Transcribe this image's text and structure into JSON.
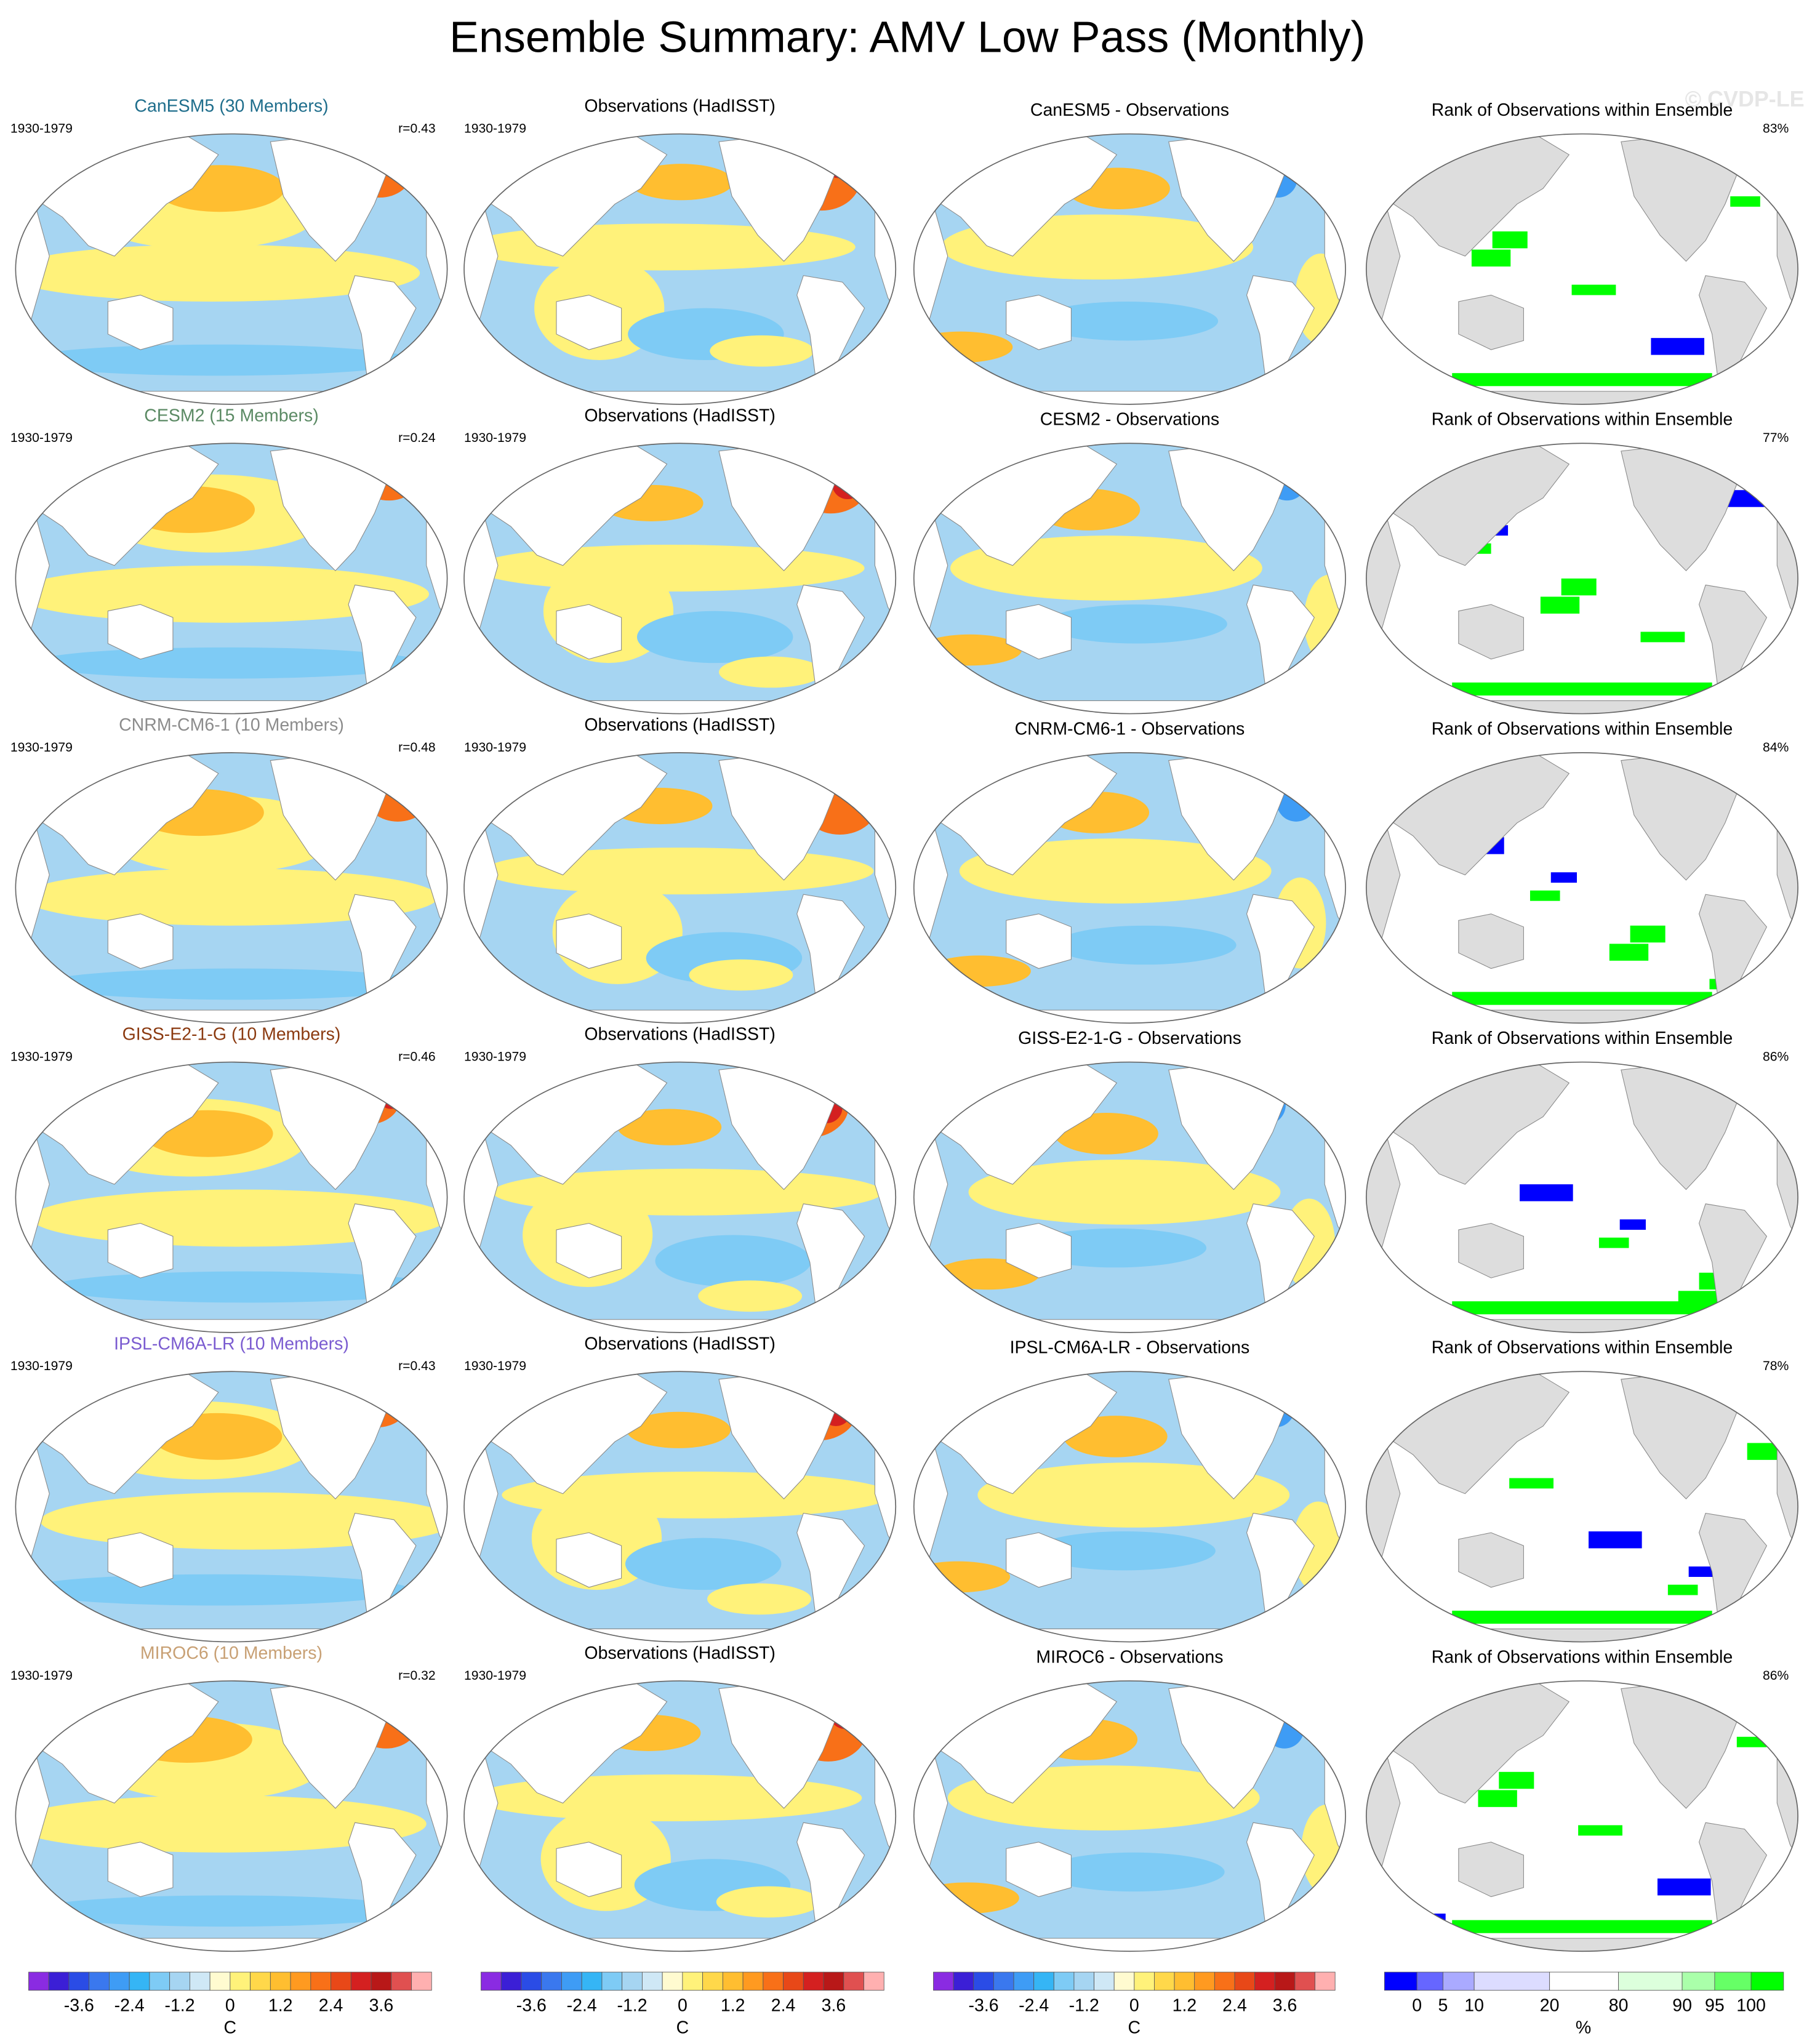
{
  "title": "Ensemble Summary: AMV Low Pass (Monthly)",
  "watermark": "© CVDP-LE",
  "rows": [
    {
      "model": "CanESM5 (30 Members)",
      "model_color": "#1f6e8c",
      "period": "1930-1979",
      "r": "r=0.43",
      "obs_title": "Observations (HadISST)",
      "obs_period": "1930-1979",
      "diff_title": "CanESM5 - Observations",
      "rank_title": "Rank of Observations within Ensemble",
      "rank_pct": "83%"
    },
    {
      "model": "CESM2 (15 Members)",
      "model_color": "#5b8a64",
      "period": "1930-1979",
      "r": "r=0.24",
      "obs_title": "Observations (HadISST)",
      "obs_period": "1930-1979",
      "diff_title": "CESM2 - Observations",
      "rank_title": "Rank of Observations within Ensemble",
      "rank_pct": "77%"
    },
    {
      "model": "CNRM-CM6-1 (10 Members)",
      "model_color": "#8c8c8c",
      "period": "1930-1979",
      "r": "r=0.48",
      "obs_title": "Observations (HadISST)",
      "obs_period": "1930-1979",
      "diff_title": "CNRM-CM6-1 - Observations",
      "rank_title": "Rank of Observations within Ensemble",
      "rank_pct": "84%"
    },
    {
      "model": "GISS-E2-1-G (10 Members)",
      "model_color": "#8b3a10",
      "period": "1930-1979",
      "r": "r=0.46",
      "obs_title": "Observations (HadISST)",
      "obs_period": "1930-1979",
      "diff_title": "GISS-E2-1-G - Observations",
      "rank_title": "Rank of Observations within Ensemble",
      "rank_pct": "86%"
    },
    {
      "model": "IPSL-CM6A-LR (10 Members)",
      "model_color": "#7a5bd0",
      "period": "1930-1979",
      "r": "r=0.43",
      "obs_title": "Observations (HadISST)",
      "obs_period": "1930-1979",
      "diff_title": "IPSL-CM6A-LR - Observations",
      "rank_title": "Rank of Observations within Ensemble",
      "rank_pct": "78%"
    },
    {
      "model": "MIROC6 (10 Members)",
      "model_color": "#c8a074",
      "period": "1930-1979",
      "r": "r=0.32",
      "obs_title": "Observations (HadISST)",
      "obs_period": "1930-1979",
      "diff_title": "MIROC6 - Observations",
      "rank_title": "Rank of Observations within Ensemble",
      "rank_pct": "86%"
    }
  ],
  "colorbars": [
    {
      "ticks": [
        -3.6,
        -2.4,
        -1.2,
        0,
        1.2,
        2.4,
        3.6
      ],
      "unit": "C",
      "colors": [
        "#8a2be2",
        "#3b1fd6",
        "#2a4ce6",
        "#3a78ee",
        "#3e9cf5",
        "#35b5f5",
        "#7ecbf5",
        "#a6d5f2",
        "#cfe8f6",
        "#fffbd0",
        "#fff27a",
        "#ffd84a",
        "#ffbe30",
        "#ff9a20",
        "#f87018",
        "#e84818",
        "#d42020",
        "#b81818",
        "#e05050",
        "#ffb0b0"
      ]
    },
    {
      "ticks": [
        -3.6,
        -2.4,
        -1.2,
        0,
        1.2,
        2.4,
        3.6
      ],
      "unit": "C",
      "colors": [
        "#8a2be2",
        "#3b1fd6",
        "#2a4ce6",
        "#3a78ee",
        "#3e9cf5",
        "#35b5f5",
        "#7ecbf5",
        "#a6d5f2",
        "#cfe8f6",
        "#fffbd0",
        "#fff27a",
        "#ffd84a",
        "#ffbe30",
        "#ff9a20",
        "#f87018",
        "#e84818",
        "#d42020",
        "#b81818",
        "#e05050",
        "#ffb0b0"
      ]
    },
    {
      "ticks": [
        -3.6,
        -2.4,
        -1.2,
        0,
        1.2,
        2.4,
        3.6
      ],
      "unit": "C",
      "colors": [
        "#8a2be2",
        "#3b1fd6",
        "#2a4ce6",
        "#3a78ee",
        "#3e9cf5",
        "#35b5f5",
        "#7ecbf5",
        "#a6d5f2",
        "#cfe8f6",
        "#fffbd0",
        "#fff27a",
        "#ffd84a",
        "#ffbe30",
        "#ff9a20",
        "#f87018",
        "#e84818",
        "#d42020",
        "#b81818",
        "#e05050",
        "#ffb0b0"
      ]
    },
    {
      "ticks": [
        0,
        5,
        10,
        20,
        80,
        90,
        95,
        100
      ],
      "unit": "%",
      "colors": [
        "#0000ff",
        "#6666ff",
        "#aaaaff",
        "#dcdcff",
        "#ffffff",
        "#dcffdc",
        "#aaffaa",
        "#66ff66",
        "#00ff00"
      ]
    }
  ]
}
